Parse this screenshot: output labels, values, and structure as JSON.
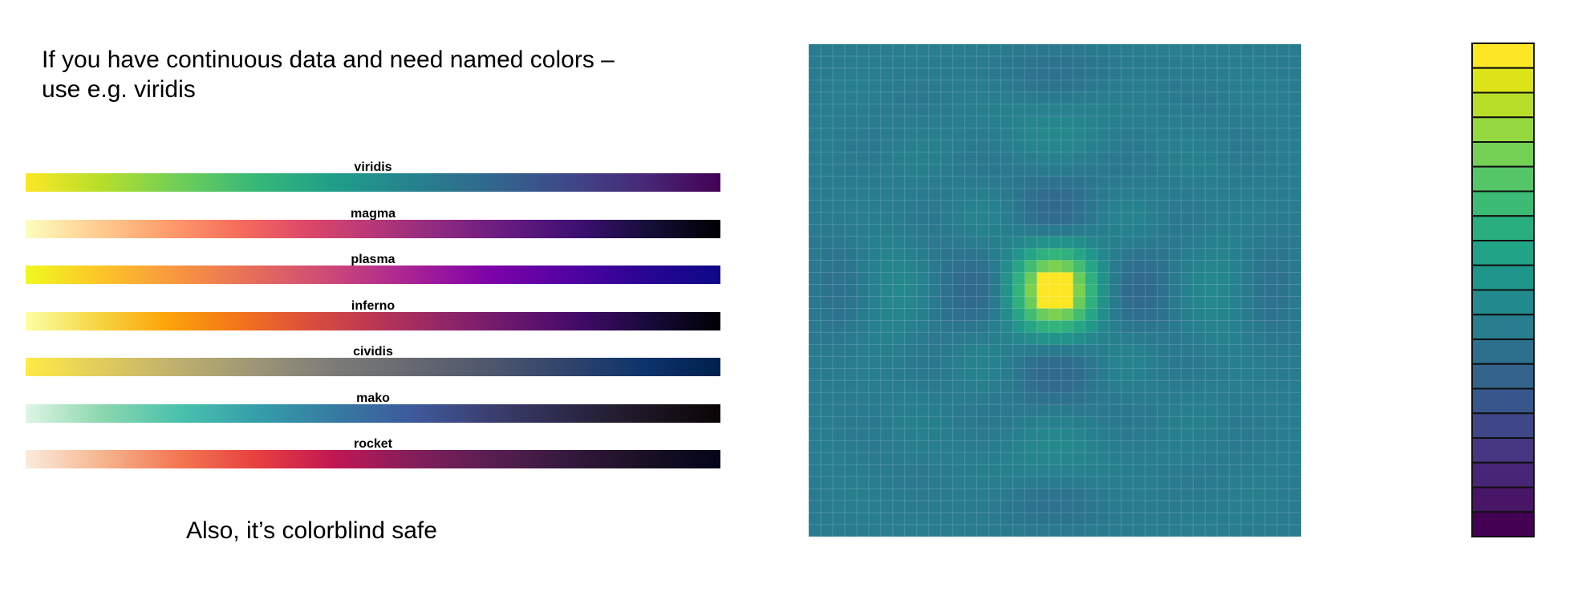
{
  "headline": {
    "line1": "If you have continuous data and need named colors –",
    "line2": "use e.g. viridis"
  },
  "footnote": "Also, it’s colorblind safe",
  "palettes": [
    {
      "name": "viridis",
      "stops": [
        "#FDE725",
        "#B5DE2B",
        "#6ECE58",
        "#35B779",
        "#1F9E89",
        "#26828E",
        "#31688E",
        "#3E4989",
        "#482878",
        "#440154"
      ]
    },
    {
      "name": "magma",
      "stops": [
        "#FCFDBF",
        "#FECE91",
        "#FE9F6D",
        "#F76F5C",
        "#DE4968",
        "#B73779",
        "#8C2981",
        "#641A80",
        "#3B0F70",
        "#140E36",
        "#000004"
      ]
    },
    {
      "name": "plasma",
      "stops": [
        "#F0F921",
        "#FDC328",
        "#F89441",
        "#E56B5D",
        "#CB4679",
        "#A82296",
        "#7E03A8",
        "#5402A3",
        "#2A0593",
        "#0D0887"
      ]
    },
    {
      "name": "inferno",
      "stops": [
        "#FCFFA4",
        "#F6D746",
        "#FCA50A",
        "#F37819",
        "#DD513A",
        "#BC3754",
        "#932667",
        "#6A176E",
        "#420A68",
        "#160B39",
        "#000004"
      ]
    },
    {
      "name": "cividis",
      "stops": [
        "#FFEA46",
        "#DFCB5D",
        "#BCAF6F",
        "#9C9576",
        "#7C7B78",
        "#666970",
        "#4E576C",
        "#31446B",
        "#0D346D",
        "#00204D"
      ]
    },
    {
      "name": "mako",
      "stops": [
        "#DEF5E5",
        "#8BD6AE",
        "#49C1AD",
        "#359EAA",
        "#357BA2",
        "#3E5A9D",
        "#3B3F70",
        "#2C2A4A",
        "#1E1624",
        "#0B0405"
      ]
    },
    {
      "name": "rocket",
      "stops": [
        "#FAEBDD",
        "#F6B48E",
        "#F37651",
        "#E83F3F",
        "#C11754",
        "#841E5A",
        "#5A1E51",
        "#35193E",
        "#1A1025",
        "#03051A"
      ]
    }
  ],
  "legend_colors": [
    "#FDE725",
    "#DCE319",
    "#B8DE29",
    "#95D840",
    "#73D055",
    "#55C667",
    "#3CBB75",
    "#29AF7F",
    "#20A387",
    "#1F968B",
    "#238A8D",
    "#287D8E",
    "#2D708E",
    "#33638D",
    "#39568C",
    "#404788",
    "#453781",
    "#482677",
    "#481567",
    "#440154"
  ]
}
